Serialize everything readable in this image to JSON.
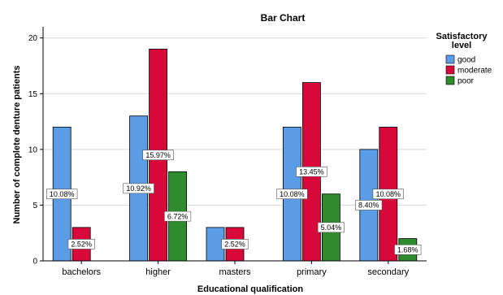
{
  "chart_data": {
    "type": "bar",
    "title": "Bar Chart",
    "xlabel": "Educational qualification",
    "ylabel": "Number of complete denture patients",
    "ylim": [
      0,
      21
    ],
    "yticks": [
      0,
      5,
      10,
      15,
      20
    ],
    "grid": "horizontal",
    "categories": [
      "bachelors",
      "higher",
      "masters",
      "primary",
      "secondary"
    ],
    "legend": {
      "title_line1": "Satisfactory",
      "title_line2": "level",
      "position": "right"
    },
    "series": [
      {
        "name": "good",
        "color": "#5b9ce6",
        "values": [
          12,
          13,
          3,
          12,
          10
        ],
        "labels": [
          "10.08%",
          "10.92%",
          "",
          "10.08%",
          "8.40%"
        ]
      },
      {
        "name": "moderate",
        "color": "#d9083b",
        "values": [
          3,
          19,
          3,
          16,
          12
        ],
        "labels": [
          "2.52%",
          "15.97%",
          "2.52%",
          "13.45%",
          "10.08%"
        ]
      },
      {
        "name": "poor",
        "color": "#2e8b2e",
        "values": [
          0,
          8,
          0,
          6,
          2
        ],
        "labels": [
          "",
          "6.72%",
          "",
          "5.04%",
          "1.68%"
        ]
      }
    ]
  }
}
